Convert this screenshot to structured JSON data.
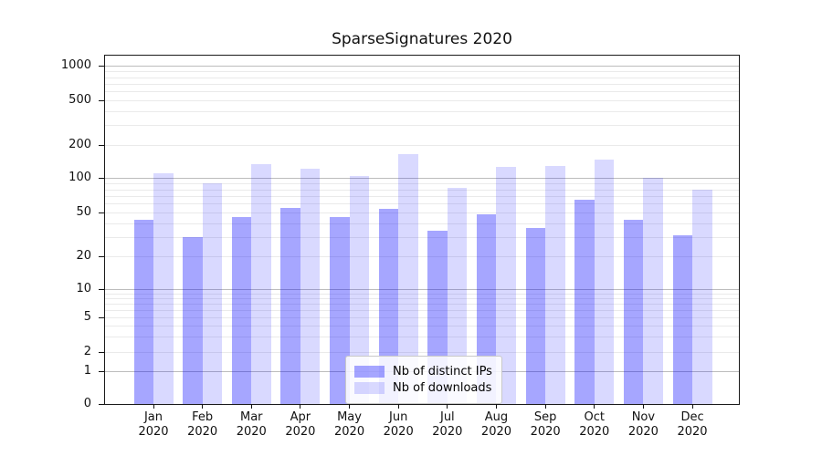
{
  "chart_data": {
    "type": "bar",
    "title": "SparseSignatures 2020",
    "months": [
      "Jan",
      "Feb",
      "Mar",
      "Apr",
      "May",
      "Jun",
      "Jul",
      "Aug",
      "Sep",
      "Oct",
      "Nov",
      "Dec"
    ],
    "year": "2020",
    "yticks": [
      0,
      1,
      2,
      5,
      10,
      20,
      50,
      100,
      200,
      500,
      1000
    ],
    "ylim": [
      0,
      1200
    ],
    "yscale": "symlog",
    "grid": "both",
    "legend_position": "lower center",
    "series": [
      {
        "name": "Nb of distinct IPs",
        "color": "rgba(0,0,255,0.35)",
        "values": [
          43,
          30,
          45,
          55,
          45,
          54,
          34,
          48,
          36,
          65,
          43,
          31
        ]
      },
      {
        "name": "Nb of downloads",
        "color": "rgba(0,0,255,0.15)",
        "values": [
          110,
          90,
          135,
          121,
          105,
          165,
          82,
          127,
          130,
          147,
          101,
          79
        ]
      }
    ]
  },
  "colors": {
    "bar_dark": "rgba(0,0,255,0.35)",
    "bar_light": "rgba(0,0,255,0.15)",
    "grid_minor": "#eaeaea",
    "grid_major": "#bcbcbc",
    "spine": "#1a1a1a",
    "text": "#111111",
    "legend_border": "#c9c9c9",
    "legend_bg": "rgba(255,255,255,0.85)"
  }
}
